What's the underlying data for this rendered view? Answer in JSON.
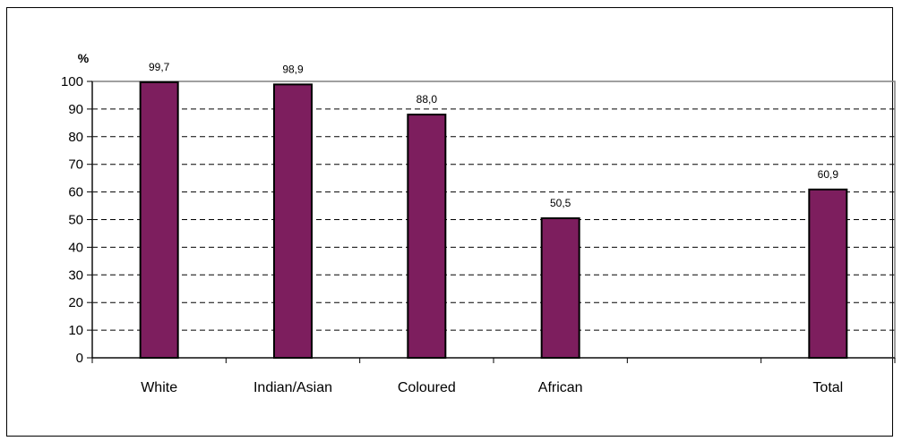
{
  "chart_data": {
    "type": "bar",
    "ylabel": "%",
    "categories": [
      "White",
      "Indian/Asian",
      "Coloured",
      "African",
      "",
      "Total"
    ],
    "values": [
      99.7,
      98.9,
      88.0,
      50.5,
      null,
      60.9
    ],
    "data_labels": [
      "99,7",
      "98,9",
      "88,0",
      "50,5",
      "",
      "60,9"
    ],
    "yticks": [
      "0",
      "10",
      "20",
      "30",
      "40",
      "50",
      "60",
      "70",
      "80",
      "90",
      "100"
    ],
    "ylim": [
      0,
      100
    ],
    "grid": true,
    "legend": "none",
    "colors": {
      "bar": "#7d1e5e",
      "bar_stroke": "#000000",
      "grid": "#000000",
      "plot_border": "#808080"
    }
  }
}
